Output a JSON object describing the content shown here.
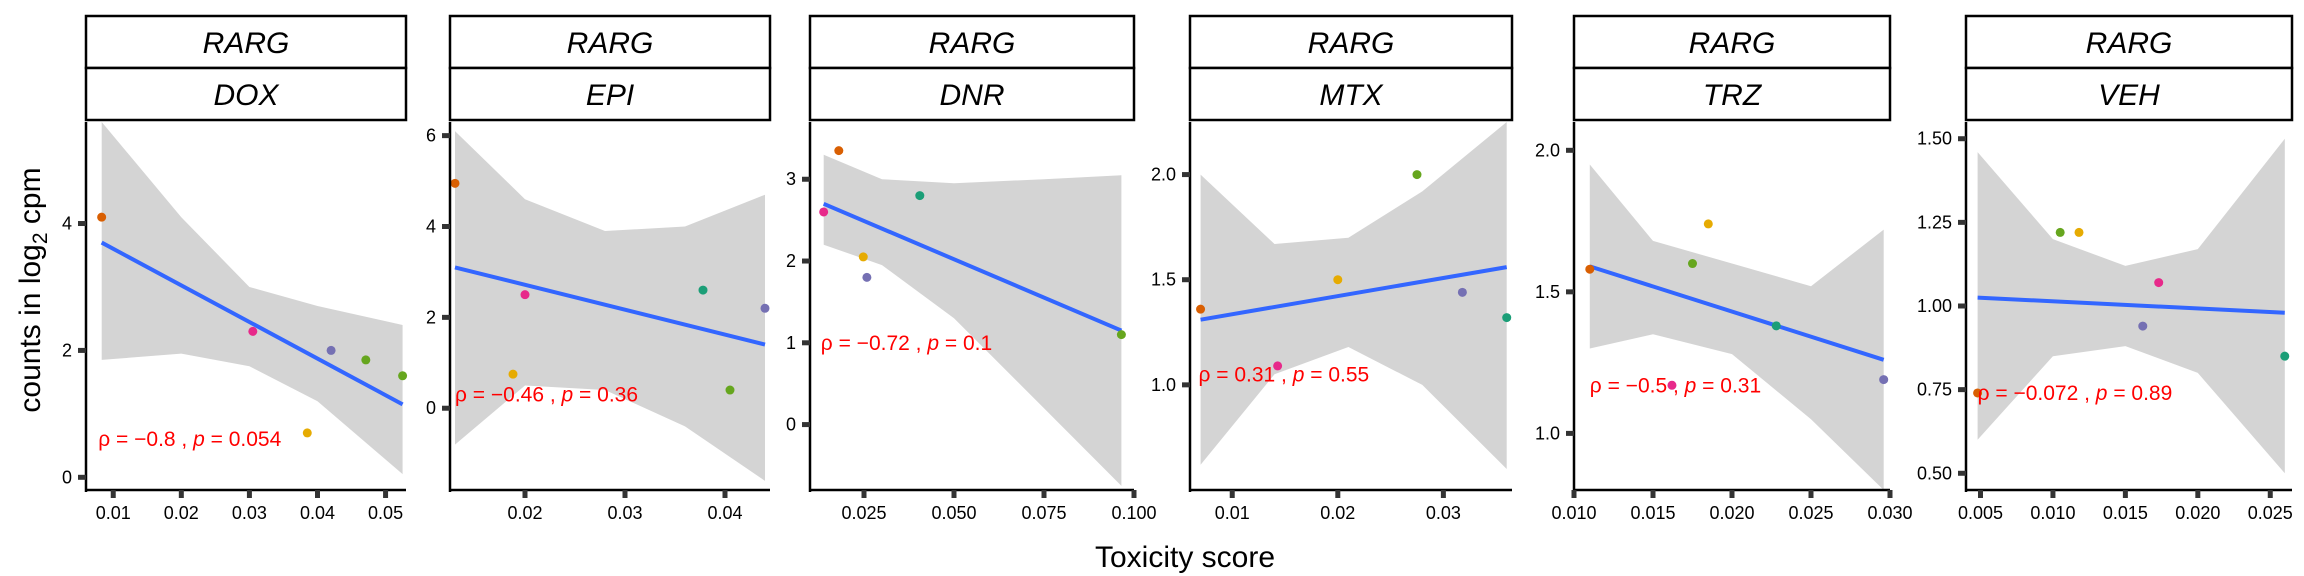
{
  "figure": {
    "ylabel": "counts in log",
    "ylabel_sub": "2",
    "ylabel_unit": "cpm",
    "xlabel": "Toxicity score",
    "fit_color": "#3366FF",
    "band_color": "#D4D4D4",
    "annotation_color": "#FF0000"
  },
  "chart_data": [
    {
      "type": "scatter",
      "gene": "RARG",
      "treatment": "DOX",
      "xlim": [
        0.006,
        0.053
      ],
      "ylim": [
        -0.2,
        5.6
      ],
      "xticks": [
        0.01,
        0.02,
        0.03,
        0.04,
        0.05
      ],
      "xtick_labels": [
        "0.01",
        "0.02",
        "0.03",
        "0.04",
        "0.05"
      ],
      "yticks": [
        0,
        2,
        4
      ],
      "ytick_labels": [
        "0",
        "2",
        "4"
      ],
      "points": [
        {
          "x": 0.0083,
          "y": 4.1,
          "color": "#D95F02"
        },
        {
          "x": 0.0305,
          "y": 2.3,
          "color": "#E7298A"
        },
        {
          "x": 0.0385,
          "y": 0.7,
          "color": "#E6AB02"
        },
        {
          "x": 0.042,
          "y": 2.0,
          "color": "#7570B3"
        },
        {
          "x": 0.0471,
          "y": 1.85,
          "color": "#66A61E"
        },
        {
          "x": 0.0525,
          "y": 1.6,
          "color": "#66A61E"
        }
      ],
      "fit": {
        "x": [
          0.0083,
          0.0525
        ],
        "y": [
          3.7,
          1.15
        ]
      },
      "band": {
        "x": [
          0.0083,
          0.02,
          0.03,
          0.04,
          0.0525
        ],
        "lower": [
          1.85,
          1.95,
          1.75,
          1.2,
          0.05
        ],
        "upper": [
          5.6,
          4.1,
          3.0,
          2.7,
          2.4
        ]
      },
      "annotation": {
        "rho": "−0.8",
        "p": "0.054",
        "x": 0.0078,
        "y": 0.6
      }
    },
    {
      "type": "scatter",
      "gene": "RARG",
      "treatment": "EPI",
      "xlim": [
        0.0125,
        0.0445
      ],
      "ylim": [
        -1.8,
        6.3
      ],
      "xticks": [
        0.02,
        0.03,
        0.04
      ],
      "xtick_labels": [
        "0.02",
        "0.03",
        "0.04"
      ],
      "yticks": [
        0,
        2,
        4,
        6
      ],
      "ytick_labels": [
        "0",
        "2",
        "4",
        "6"
      ],
      "points": [
        {
          "x": 0.013,
          "y": 4.95,
          "color": "#D95F02"
        },
        {
          "x": 0.0188,
          "y": 0.75,
          "color": "#E6AB02"
        },
        {
          "x": 0.02,
          "y": 2.5,
          "color": "#E7298A"
        },
        {
          "x": 0.0378,
          "y": 2.6,
          "color": "#1B9E77"
        },
        {
          "x": 0.0405,
          "y": 0.4,
          "color": "#66A61E"
        },
        {
          "x": 0.044,
          "y": 2.2,
          "color": "#7570B3"
        }
      ],
      "fit": {
        "x": [
          0.013,
          0.044
        ],
        "y": [
          3.1,
          1.4
        ]
      },
      "band": {
        "x": [
          0.013,
          0.02,
          0.028,
          0.036,
          0.044
        ],
        "lower": [
          -0.8,
          0.5,
          0.4,
          -0.4,
          -1.6
        ],
        "upper": [
          6.1,
          4.6,
          3.9,
          4.0,
          4.7
        ]
      },
      "annotation": {
        "rho": "−0.46",
        "p": "0.36",
        "x": 0.013,
        "y": 0.3
      }
    },
    {
      "type": "scatter",
      "gene": "RARG",
      "treatment": "DNR",
      "xlim": [
        0.01,
        0.1
      ],
      "ylim": [
        -0.8,
        3.7
      ],
      "xticks": [
        0.025,
        0.05,
        0.075,
        0.1
      ],
      "xtick_labels": [
        "0.025",
        "0.050",
        "0.075",
        "0.100"
      ],
      "yticks": [
        0,
        1,
        2,
        3
      ],
      "ytick_labels": [
        "0",
        "1",
        "2",
        "3"
      ],
      "points": [
        {
          "x": 0.0138,
          "y": 2.6,
          "color": "#E7298A"
        },
        {
          "x": 0.018,
          "y": 3.35,
          "color": "#D95F02"
        },
        {
          "x": 0.0248,
          "y": 2.05,
          "color": "#E6AB02"
        },
        {
          "x": 0.0258,
          "y": 1.8,
          "color": "#7570B3"
        },
        {
          "x": 0.0405,
          "y": 2.8,
          "color": "#1B9E77"
        },
        {
          "x": 0.0965,
          "y": 1.1,
          "color": "#66A61E"
        }
      ],
      "fit": {
        "x": [
          0.0138,
          0.0965
        ],
        "y": [
          2.7,
          1.15
        ]
      },
      "band": {
        "x": [
          0.0138,
          0.03,
          0.05,
          0.075,
          0.0965
        ],
        "lower": [
          2.2,
          1.95,
          1.3,
          0.2,
          -0.75
        ],
        "upper": [
          3.3,
          3.0,
          2.95,
          3.0,
          3.05
        ]
      },
      "annotation": {
        "rho": "−0.72",
        "p": "0.1",
        "x": 0.013,
        "y": 1.0
      }
    },
    {
      "type": "scatter",
      "gene": "RARG",
      "treatment": "MTX",
      "xlim": [
        0.006,
        0.0365
      ],
      "ylim": [
        0.5,
        2.25
      ],
      "xticks": [
        0.01,
        0.02,
        0.03
      ],
      "xtick_labels": [
        "0.01",
        "0.02",
        "0.03"
      ],
      "yticks": [
        1.0,
        1.5,
        2.0
      ],
      "ytick_labels": [
        "1.0",
        "1.5",
        "2.0"
      ],
      "points": [
        {
          "x": 0.007,
          "y": 1.36,
          "color": "#D95F02"
        },
        {
          "x": 0.0143,
          "y": 1.09,
          "color": "#E7298A"
        },
        {
          "x": 0.02,
          "y": 1.5,
          "color": "#E6AB02"
        },
        {
          "x": 0.0275,
          "y": 2.0,
          "color": "#66A61E"
        },
        {
          "x": 0.0318,
          "y": 1.44,
          "color": "#7570B3"
        },
        {
          "x": 0.036,
          "y": 1.32,
          "color": "#1B9E77"
        }
      ],
      "fit": {
        "x": [
          0.007,
          0.036
        ],
        "y": [
          1.31,
          1.56
        ]
      },
      "band": {
        "x": [
          0.007,
          0.014,
          0.021,
          0.028,
          0.036
        ],
        "lower": [
          0.62,
          1.05,
          1.18,
          1.0,
          0.6
        ],
        "upper": [
          2.0,
          1.67,
          1.7,
          1.92,
          2.47
        ]
      },
      "annotation": {
        "rho": "0.31",
        "p": "0.55",
        "x": 0.0068,
        "y": 1.05
      }
    },
    {
      "type": "scatter",
      "gene": "RARG",
      "treatment": "TRZ",
      "xlim": [
        0.01,
        0.03
      ],
      "ylim": [
        0.8,
        2.1
      ],
      "xticks": [
        0.01,
        0.015,
        0.02,
        0.025,
        0.03
      ],
      "xtick_labels": [
        "0.010",
        "0.015",
        "0.020",
        "0.025",
        "0.030"
      ],
      "yticks": [
        1.0,
        1.5,
        2.0
      ],
      "ytick_labels": [
        "1.0",
        "1.5",
        "2.0"
      ],
      "points": [
        {
          "x": 0.011,
          "y": 1.58,
          "color": "#D95F02"
        },
        {
          "x": 0.0162,
          "y": 1.17,
          "color": "#E7298A"
        },
        {
          "x": 0.0175,
          "y": 1.6,
          "color": "#66A61E"
        },
        {
          "x": 0.0185,
          "y": 1.74,
          "color": "#E6AB02"
        },
        {
          "x": 0.0228,
          "y": 1.38,
          "color": "#1B9E77"
        },
        {
          "x": 0.0296,
          "y": 1.19,
          "color": "#7570B3"
        }
      ],
      "fit": {
        "x": [
          0.011,
          0.0296
        ],
        "y": [
          1.59,
          1.26
        ]
      },
      "band": {
        "x": [
          0.011,
          0.015,
          0.02,
          0.025,
          0.0296
        ],
        "lower": [
          1.3,
          1.35,
          1.28,
          1.05,
          0.8
        ],
        "upper": [
          1.95,
          1.68,
          1.6,
          1.52,
          1.72
        ]
      },
      "annotation": {
        "rho": "−0.5",
        "p": "0.31",
        "x": 0.011,
        "y": 1.17
      }
    },
    {
      "type": "scatter",
      "gene": "RARG",
      "treatment": "VEH",
      "xlim": [
        0.004,
        0.0265
      ],
      "ylim": [
        0.45,
        1.55
      ],
      "xticks": [
        0.005,
        0.01,
        0.015,
        0.02,
        0.025
      ],
      "xtick_labels": [
        "0.005",
        "0.010",
        "0.015",
        "0.020",
        "0.025"
      ],
      "yticks": [
        0.5,
        0.75,
        1.0,
        1.25,
        1.5
      ],
      "ytick_labels": [
        "0.50",
        "0.75",
        "1.00",
        "1.25",
        "1.50"
      ],
      "points": [
        {
          "x": 0.0048,
          "y": 0.74,
          "color": "#D95F02"
        },
        {
          "x": 0.0105,
          "y": 1.22,
          "color": "#66A61E"
        },
        {
          "x": 0.0118,
          "y": 1.22,
          "color": "#E6AB02"
        },
        {
          "x": 0.0162,
          "y": 0.94,
          "color": "#7570B3"
        },
        {
          "x": 0.0173,
          "y": 1.07,
          "color": "#E7298A"
        },
        {
          "x": 0.026,
          "y": 0.85,
          "color": "#1B9E77"
        }
      ],
      "fit": {
        "x": [
          0.0048,
          0.026
        ],
        "y": [
          1.025,
          0.98
        ]
      },
      "band": {
        "x": [
          0.0048,
          0.01,
          0.015,
          0.02,
          0.026
        ],
        "lower": [
          0.6,
          0.85,
          0.88,
          0.8,
          0.5
        ],
        "upper": [
          1.46,
          1.2,
          1.12,
          1.17,
          1.5
        ]
      },
      "annotation": {
        "rho": "−0.072",
        "p": "0.89",
        "x": 0.0048,
        "y": 0.74
      }
    }
  ]
}
